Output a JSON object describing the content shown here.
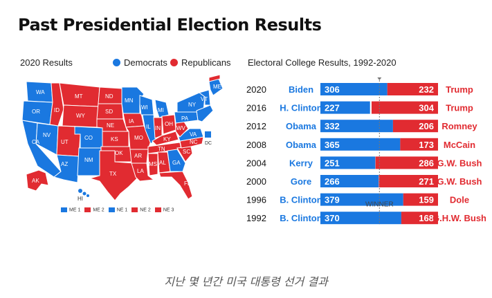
{
  "title": "Past Presidential Election Results",
  "map_section": {
    "subtitle": "2020 Results",
    "legend": [
      {
        "label": "Democrats",
        "color": "#1a78e0"
      },
      {
        "label": "Republicans",
        "color": "#e12b31"
      }
    ],
    "states": [
      {
        "abbr": "WA",
        "party": "dem"
      },
      {
        "abbr": "OR",
        "party": "dem"
      },
      {
        "abbr": "CA",
        "party": "dem"
      },
      {
        "abbr": "NV",
        "party": "dem"
      },
      {
        "abbr": "ID",
        "party": "rep"
      },
      {
        "abbr": "MT",
        "party": "rep"
      },
      {
        "abbr": "WY",
        "party": "rep"
      },
      {
        "abbr": "UT",
        "party": "rep"
      },
      {
        "abbr": "AZ",
        "party": "dem"
      },
      {
        "abbr": "CO",
        "party": "dem"
      },
      {
        "abbr": "NM",
        "party": "dem"
      },
      {
        "abbr": "ND",
        "party": "rep"
      },
      {
        "abbr": "SD",
        "party": "rep"
      },
      {
        "abbr": "NE",
        "party": "rep"
      },
      {
        "abbr": "KS",
        "party": "rep"
      },
      {
        "abbr": "OK",
        "party": "rep"
      },
      {
        "abbr": "TX",
        "party": "rep"
      },
      {
        "abbr": "MN",
        "party": "dem"
      },
      {
        "abbr": "IA",
        "party": "rep"
      },
      {
        "abbr": "MO",
        "party": "rep"
      },
      {
        "abbr": "AR",
        "party": "rep"
      },
      {
        "abbr": "LA",
        "party": "rep"
      },
      {
        "abbr": "WI",
        "party": "dem"
      },
      {
        "abbr": "IL",
        "party": "dem"
      },
      {
        "abbr": "MI",
        "party": "dem"
      },
      {
        "abbr": "IN",
        "party": "rep"
      },
      {
        "abbr": "OH",
        "party": "rep"
      },
      {
        "abbr": "KY",
        "party": "rep"
      },
      {
        "abbr": "TN",
        "party": "rep"
      },
      {
        "abbr": "MS",
        "party": "rep"
      },
      {
        "abbr": "AL",
        "party": "rep"
      },
      {
        "abbr": "GA",
        "party": "dem"
      },
      {
        "abbr": "FL",
        "party": "rep"
      },
      {
        "abbr": "SC",
        "party": "rep"
      },
      {
        "abbr": "NC",
        "party": "rep"
      },
      {
        "abbr": "VA",
        "party": "dem"
      },
      {
        "abbr": "WV",
        "party": "rep"
      },
      {
        "abbr": "PA",
        "party": "dem"
      },
      {
        "abbr": "NY",
        "party": "dem"
      },
      {
        "abbr": "VT",
        "party": "dem"
      },
      {
        "abbr": "ME",
        "party": "dem"
      },
      {
        "abbr": "AK",
        "party": "rep"
      },
      {
        "abbr": "HI",
        "party": "dem"
      },
      {
        "abbr": "DC",
        "party": "dem"
      }
    ],
    "district_legend": [
      {
        "label": "ME 1",
        "color": "#1a78e0"
      },
      {
        "label": "ME 2",
        "color": "#e12b31"
      },
      {
        "label": "NE 1",
        "color": "#1a78e0"
      },
      {
        "label": "NE 2",
        "color": "#e12b31"
      },
      {
        "label": "NE 3",
        "color": "#e12b31"
      }
    ]
  },
  "chart_data": {
    "type": "bar",
    "subtitle": "Electoral College Results, 1992-2020",
    "orientation": "horizontal-stacked",
    "total": 538,
    "threshold": 270,
    "threshold_label": "WINNER",
    "colors": {
      "dem": "#1a78e0",
      "rep": "#e12b31"
    },
    "categories": [
      "2020",
      "2016",
      "2012",
      "2008",
      "2004",
      "2000",
      "1996",
      "1992"
    ],
    "series": [
      {
        "name": "Democrats",
        "candidates": [
          "Biden",
          "H. Clinton",
          "Obama",
          "Obama",
          "Kerry",
          "Gore",
          "B. Clinton",
          "B. Clinton"
        ],
        "values": [
          306,
          227,
          332,
          365,
          251,
          266,
          379,
          370
        ]
      },
      {
        "name": "Republicans",
        "candidates": [
          "Trump",
          "Trump",
          "Romney",
          "McCain",
          "G.W. Bush",
          "G.W. Bush",
          "Dole",
          "G.H.W. Bush"
        ],
        "values": [
          232,
          304,
          206,
          173,
          286,
          271,
          159,
          168
        ]
      }
    ]
  },
  "caption": "지난 몇 년간 미국 대통령 선거 결과"
}
